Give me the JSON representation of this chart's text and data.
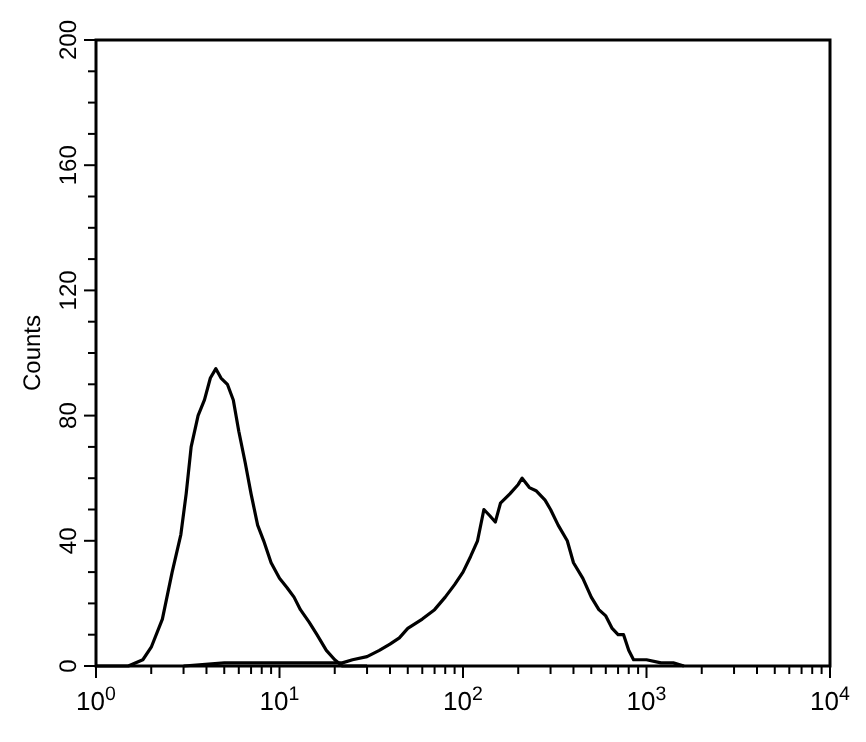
{
  "chart_data": {
    "type": "line",
    "ylabel": "Counts",
    "log": "x",
    "grid": false,
    "line_style": "solid",
    "marker": "none",
    "xlim": [
      1,
      10000
    ],
    "ylim": [
      0,
      200
    ],
    "xticks": [
      {
        "value": 1,
        "label": "10$^{0}$"
      },
      {
        "value": 2,
        "label": null
      },
      {
        "value": 3,
        "label": null
      },
      {
        "value": 4,
        "label": null
      },
      {
        "value": 5,
        "label": null
      },
      {
        "value": 6,
        "label": null
      },
      {
        "value": 7,
        "label": null
      },
      {
        "value": 8,
        "label": null
      },
      {
        "value": 9,
        "label": null
      },
      {
        "value": 10,
        "label": "10$^{1}$"
      },
      {
        "value": 20,
        "label": null
      },
      {
        "value": 30,
        "label": null
      },
      {
        "value": 40,
        "label": null
      },
      {
        "value": 50,
        "label": null
      },
      {
        "value": 60,
        "label": null
      },
      {
        "value": 70,
        "label": null
      },
      {
        "value": 80,
        "label": null
      },
      {
        "value": 90,
        "label": null
      },
      {
        "value": 100,
        "label": "10$^{2}$"
      },
      {
        "value": 200,
        "label": null
      },
      {
        "value": 300,
        "label": null
      },
      {
        "value": 400,
        "label": null
      },
      {
        "value": 500,
        "label": null
      },
      {
        "value": 600,
        "label": null
      },
      {
        "value": 700,
        "label": null
      },
      {
        "value": 800,
        "label": null
      },
      {
        "value": 900,
        "label": null
      },
      {
        "value": 1000,
        "label": "10$^{3}$"
      },
      {
        "value": 2000,
        "label": null
      },
      {
        "value": 3000,
        "label": null
      },
      {
        "value": 4000,
        "label": null
      },
      {
        "value": 5000,
        "label": null
      },
      {
        "value": 6000,
        "label": null
      },
      {
        "value": 7000,
        "label": null
      },
      {
        "value": 8000,
        "label": null
      },
      {
        "value": 9000,
        "label": null
      },
      {
        "value": 10000,
        "label": "10$^{4}$"
      }
    ],
    "yticks": [
      0,
      {
        "value": 10,
        "label": null
      },
      {
        "value": 20,
        "label": null
      },
      {
        "value": 30,
        "label": null
      },
      40,
      {
        "value": 50,
        "label": null
      },
      {
        "value": 60,
        "label": null
      },
      {
        "value": 70,
        "label": null
      },
      80,
      {
        "value": 90,
        "label": null
      },
      {
        "value": 100,
        "label": null
      },
      {
        "value": 110,
        "label": null
      },
      120,
      {
        "value": 130,
        "label": null
      },
      {
        "value": 140,
        "label": null
      },
      {
        "value": 150,
        "label": null
      },
      160,
      {
        "value": 170,
        "label": null
      },
      {
        "value": 180,
        "label": null
      },
      {
        "value": 190,
        "label": null
      },
      200
    ],
    "series": [
      {
        "color": "#000000",
        "x": [
          1,
          1.5,
          1.8,
          2.0,
          2.3,
          2.6,
          2.9,
          3.1,
          3.3,
          3.6,
          3.9,
          4.2,
          4.5,
          4.8,
          5.2,
          5.6,
          6.0,
          6.5,
          7.0,
          7.6,
          8.2,
          9.0,
          10,
          11,
          12,
          13,
          14.5,
          16,
          18,
          20,
          22,
          30
        ],
        "values": [
          0,
          0,
          2,
          6,
          15,
          30,
          42,
          55,
          70,
          80,
          85,
          92,
          95,
          92,
          90,
          85,
          75,
          65,
          55,
          45,
          40,
          33,
          28,
          25,
          22,
          18,
          14,
          10,
          5,
          2,
          0,
          0
        ]
      },
      {
        "color": "#000000",
        "x": [
          3,
          5,
          10,
          15,
          20,
          22,
          25,
          30,
          35,
          40,
          45,
          50,
          60,
          70,
          80,
          90,
          100,
          110,
          120,
          130,
          140,
          150,
          160,
          180,
          200,
          210,
          230,
          250,
          280,
          300,
          330,
          370,
          400,
          450,
          500,
          550,
          600,
          650,
          700,
          750,
          800,
          850,
          1000,
          1200,
          1400,
          1600
        ],
        "values": [
          0,
          1,
          1,
          1,
          1,
          1,
          2,
          3,
          5,
          7,
          9,
          12,
          15,
          18,
          22,
          26,
          30,
          35,
          40,
          50,
          48,
          46,
          52,
          55,
          58,
          60,
          57,
          56,
          53,
          50,
          45,
          40,
          33,
          28,
          22,
          18,
          16,
          12,
          10,
          10,
          5,
          2,
          2,
          1,
          1,
          0
        ]
      }
    ]
  }
}
